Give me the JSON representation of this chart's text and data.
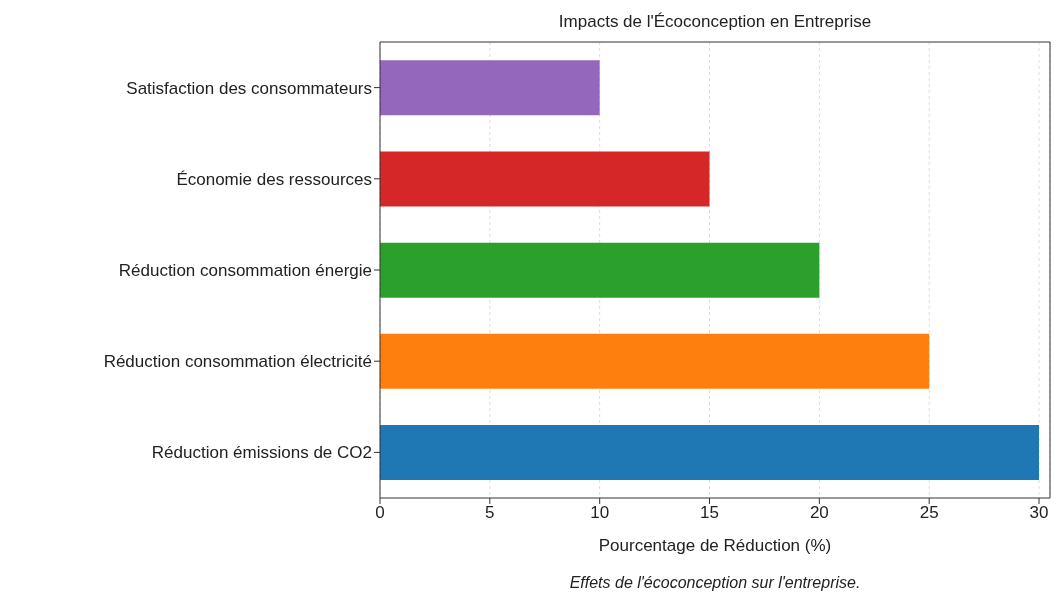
{
  "chart_data": {
    "type": "bar",
    "orientation": "horizontal",
    "title": "Impacts de l'Écoconception en Entreprise",
    "xlabel": "Pourcentage de Réduction (%)",
    "annotations": [
      "Effets de l'écoconception sur l'entreprise."
    ],
    "categories": [
      "Satisfaction des consommateurs",
      "Économie des ressources",
      "Réduction consommation énergie",
      "Réduction consommation électricité",
      "Réduction émissions de CO2"
    ],
    "values": [
      10,
      15,
      20,
      25,
      30
    ],
    "colors": [
      "#9467bd",
      "#d62728",
      "#2ca02c",
      "#ff7f0e",
      "#1f77b4"
    ],
    "xlim": [
      0,
      30.5
    ],
    "xticks": [
      0,
      5,
      10,
      15,
      20,
      25,
      30
    ],
    "grid": "x"
  }
}
